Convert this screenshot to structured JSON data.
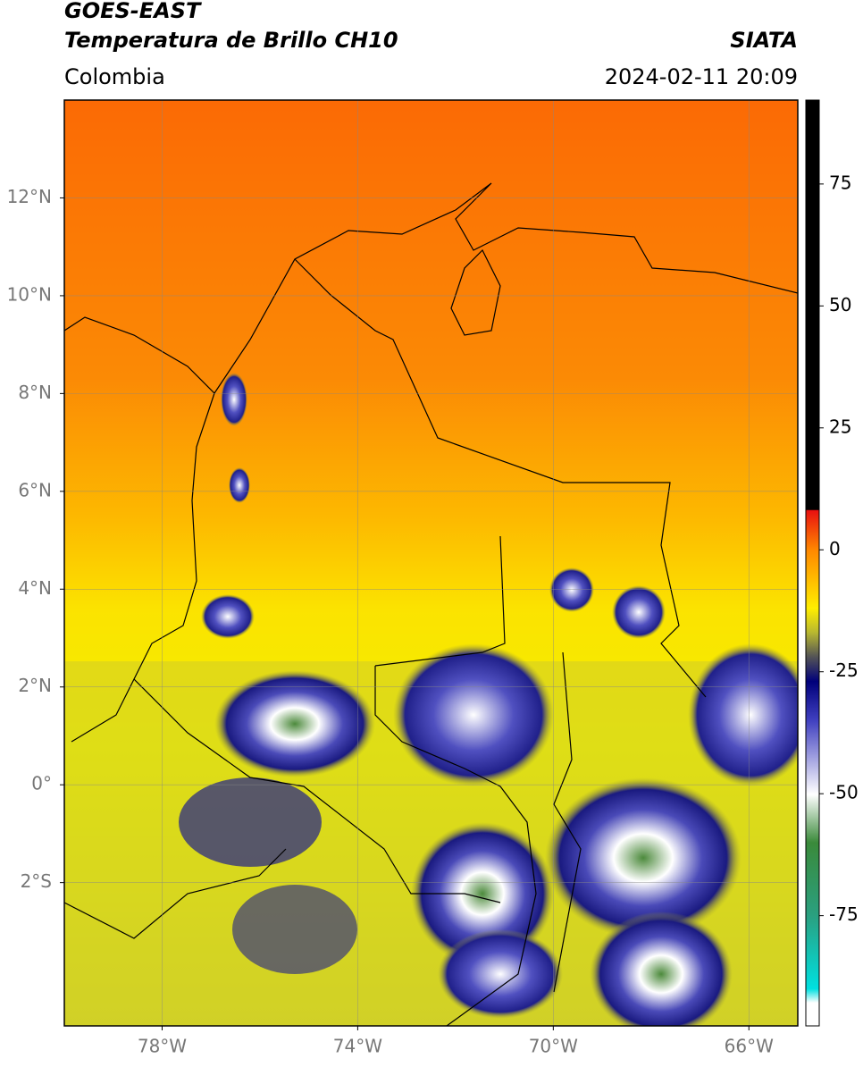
{
  "header": {
    "title": "GOES-EAST",
    "subtitle": "Temperatura de Brillo CH10",
    "source": "SIATA",
    "region": "Colombia",
    "datetime": "2024-02-11 20:09"
  },
  "map": {
    "xlim": [
      -80,
      -65
    ],
    "ylim": [
      -4.93,
      14
    ],
    "xticks": [
      {
        "value": -78,
        "label": "78°W"
      },
      {
        "value": -74,
        "label": "74°W"
      },
      {
        "value": -70,
        "label": "70°W"
      },
      {
        "value": -66,
        "label": "66°W"
      }
    ],
    "yticks": [
      {
        "value": 12,
        "label": "12°N"
      },
      {
        "value": 10,
        "label": "10°N"
      },
      {
        "value": 8,
        "label": "8°N"
      },
      {
        "value": 6,
        "label": "6°N"
      },
      {
        "value": 4,
        "label": "4°N"
      },
      {
        "value": 2,
        "label": "2°N"
      },
      {
        "value": 0,
        "label": "0°"
      },
      {
        "value": -2,
        "label": "2°S"
      }
    ],
    "grid": true
  },
  "colorbar": {
    "lim": [
      -97.6,
      92.2
    ],
    "ticks": [
      75,
      50,
      25,
      0,
      -25,
      -50,
      -75
    ]
  }
}
